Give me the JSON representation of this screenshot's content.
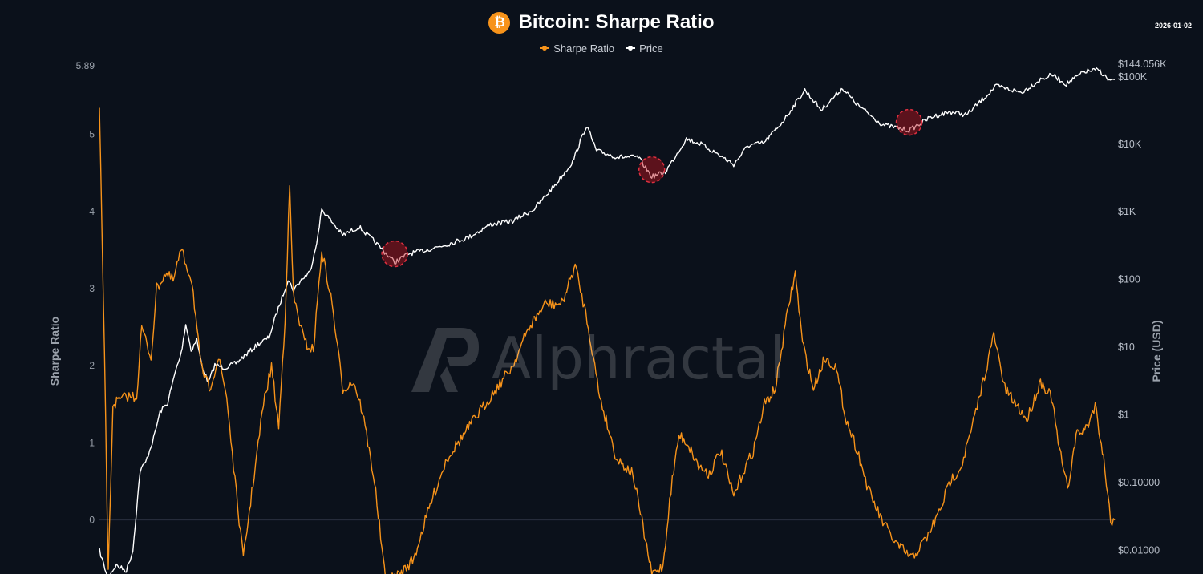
{
  "header": {
    "title": "Bitcoin: Sharpe Ratio",
    "logo_glyph": "₿",
    "date": "2026-01-02"
  },
  "legend": {
    "items": [
      {
        "label": "Sharpe Ratio",
        "color": "#f7931a"
      },
      {
        "label": "Price",
        "color": "#ffffff"
      }
    ]
  },
  "watermark": {
    "text": "Alphractal"
  },
  "chart_data": {
    "type": "line",
    "ylabel": "Sharpe Ratio",
    "y2label": "Price (USD)",
    "ylim": [
      -0.7,
      5.89
    ],
    "y2lim_log10": [
      -2.35,
      5.158
    ],
    "y_max_label": "5.89",
    "y_ticks": [
      0,
      1,
      2,
      3,
      4,
      5
    ],
    "y2_ticks": [
      {
        "label": "$144.056K",
        "value": 144056
      },
      {
        "label": "$100K",
        "value": 100000
      },
      {
        "label": "$10K",
        "value": 10000
      },
      {
        "label": "$1K",
        "value": 1000
      },
      {
        "label": "$100",
        "value": 100
      },
      {
        "label": "$10",
        "value": 10
      },
      {
        "label": "$1",
        "value": 1
      },
      {
        "label": "$0.10000",
        "value": 0.1
      },
      {
        "label": "$0.01000",
        "value": 0.01
      }
    ],
    "grid": false,
    "legend_position": "top-center",
    "x_start": "2010-07-18",
    "x_end": "2026-01-02",
    "series": [
      {
        "name": "Sharpe Ratio",
        "axis": "left",
        "color": "#f7931a",
        "points": [
          [
            "2010-07-18",
            5.3
          ],
          [
            "2010-08-15",
            2.2
          ],
          [
            "2010-09-05",
            -0.7
          ],
          [
            "2010-10-01",
            1.5
          ],
          [
            "2010-12-15",
            1.6
          ],
          [
            "2011-02-10",
            1.6
          ],
          [
            "2011-03-10",
            2.5
          ],
          [
            "2011-05-01",
            2.1
          ],
          [
            "2011-06-01",
            3.0
          ],
          [
            "2011-07-20",
            3.2
          ],
          [
            "2011-09-01",
            3.1
          ],
          [
            "2011-10-15",
            3.5
          ],
          [
            "2011-12-15",
            3.1
          ],
          [
            "2012-02-01",
            2.0
          ],
          [
            "2012-03-20",
            1.7
          ],
          [
            "2012-05-10",
            2.1
          ],
          [
            "2012-06-25",
            1.6
          ],
          [
            "2012-08-10",
            0.5
          ],
          [
            "2012-09-25",
            -0.5
          ],
          [
            "2012-11-25",
            0.6
          ],
          [
            "2013-01-15",
            1.5
          ],
          [
            "2013-03-01",
            2.0
          ],
          [
            "2013-04-10",
            1.2
          ],
          [
            "2013-05-15",
            2.6
          ],
          [
            "2013-06-10",
            4.3
          ],
          [
            "2013-07-01",
            2.9
          ],
          [
            "2013-09-01",
            2.3
          ],
          [
            "2013-10-20",
            2.2
          ],
          [
            "2013-12-05",
            3.5
          ],
          [
            "2014-02-01",
            2.8
          ],
          [
            "2014-04-01",
            1.7
          ],
          [
            "2014-06-01",
            1.8
          ],
          [
            "2014-07-20",
            1.4
          ],
          [
            "2014-09-25",
            0.5
          ],
          [
            "2014-11-25",
            -0.8
          ],
          [
            "2015-02-15",
            -0.7
          ],
          [
            "2015-05-01",
            -0.5
          ],
          [
            "2015-08-01",
            0.2
          ],
          [
            "2015-11-01",
            0.8
          ],
          [
            "2016-02-01",
            1.1
          ],
          [
            "2016-05-01",
            1.4
          ],
          [
            "2016-08-01",
            1.7
          ],
          [
            "2016-11-01",
            2.0
          ],
          [
            "2017-02-01",
            2.5
          ],
          [
            "2017-05-01",
            2.8
          ],
          [
            "2017-08-01",
            2.8
          ],
          [
            "2017-10-15",
            3.3
          ],
          [
            "2017-12-20",
            2.6
          ],
          [
            "2018-03-01",
            1.6
          ],
          [
            "2018-06-01",
            0.8
          ],
          [
            "2018-09-01",
            0.6
          ],
          [
            "2018-12-15",
            -0.7
          ],
          [
            "2019-02-15",
            -0.6
          ],
          [
            "2019-04-01",
            0.4
          ],
          [
            "2019-05-15",
            1.1
          ],
          [
            "2019-07-01",
            1.0
          ],
          [
            "2019-09-01",
            0.7
          ],
          [
            "2019-11-01",
            0.6
          ],
          [
            "2020-01-01",
            0.9
          ],
          [
            "2020-03-15",
            0.3
          ],
          [
            "2020-05-01",
            0.6
          ],
          [
            "2020-07-01",
            0.9
          ],
          [
            "2020-09-01",
            1.5
          ],
          [
            "2020-11-01",
            1.7
          ],
          [
            "2021-01-15",
            2.8
          ],
          [
            "2021-02-20",
            3.2
          ],
          [
            "2021-04-01",
            2.3
          ],
          [
            "2021-06-01",
            1.7
          ],
          [
            "2021-08-01",
            2.1
          ],
          [
            "2021-10-01",
            2.0
          ],
          [
            "2021-12-01",
            1.3
          ],
          [
            "2022-02-01",
            0.9
          ],
          [
            "2022-04-01",
            0.4
          ],
          [
            "2022-06-15",
            0.0
          ],
          [
            "2022-09-01",
            -0.3
          ],
          [
            "2022-12-01",
            -0.5
          ],
          [
            "2023-03-01",
            -0.2
          ],
          [
            "2023-05-01",
            0.1
          ],
          [
            "2023-07-01",
            0.5
          ],
          [
            "2023-09-01",
            0.7
          ],
          [
            "2023-11-01",
            1.2
          ],
          [
            "2024-01-01",
            1.8
          ],
          [
            "2024-03-01",
            2.4
          ],
          [
            "2024-05-01",
            1.7
          ],
          [
            "2024-07-01",
            1.5
          ],
          [
            "2024-09-01",
            1.3
          ],
          [
            "2024-11-15",
            1.8
          ],
          [
            "2025-01-15",
            1.6
          ],
          [
            "2025-03-01",
            0.9
          ],
          [
            "2025-04-15",
            0.4
          ],
          [
            "2025-06-01",
            1.1
          ],
          [
            "2025-08-01",
            1.2
          ],
          [
            "2025-09-15",
            1.5
          ],
          [
            "2025-11-01",
            0.8
          ],
          [
            "2025-12-10",
            0.0
          ],
          [
            "2026-01-02",
            0.0
          ]
        ]
      },
      {
        "name": "Price",
        "axis": "right",
        "color": "#ffffff",
        "points": [
          [
            "2010-07-18",
            0.01
          ],
          [
            "2010-09-01",
            0.004
          ],
          [
            "2010-10-20",
            0.006
          ],
          [
            "2010-12-15",
            0.005
          ],
          [
            "2011-01-20",
            0.01
          ],
          [
            "2011-03-01",
            0.15
          ],
          [
            "2011-04-01",
            0.2
          ],
          [
            "2011-05-15",
            0.45
          ],
          [
            "2011-06-20",
            1.1
          ],
          [
            "2011-08-01",
            1.5
          ],
          [
            "2011-09-15",
            4.5
          ],
          [
            "2011-10-15",
            8.0
          ],
          [
            "2011-11-10",
            22.0
          ],
          [
            "2011-12-10",
            9.0
          ],
          [
            "2012-01-10",
            13.0
          ],
          [
            "2012-02-10",
            5.0
          ],
          [
            "2012-03-15",
            3.0
          ],
          [
            "2012-04-20",
            5.5
          ],
          [
            "2012-06-15",
            5.0
          ],
          [
            "2012-08-15",
            5.8
          ],
          [
            "2012-10-15",
            8.0
          ],
          [
            "2012-12-15",
            11.0
          ],
          [
            "2013-02-15",
            14.0
          ],
          [
            "2013-04-01",
            33.0
          ],
          [
            "2013-06-01",
            100.0
          ],
          [
            "2013-07-01",
            70.0
          ],
          [
            "2013-08-15",
            100.0
          ],
          [
            "2013-10-01",
            130.0
          ],
          [
            "2013-11-15",
            450.0
          ],
          [
            "2013-12-05",
            1100.0
          ],
          [
            "2014-01-15",
            800.0
          ],
          [
            "2014-04-01",
            450.0
          ],
          [
            "2014-07-01",
            600.0
          ],
          [
            "2014-10-01",
            350.0
          ],
          [
            "2015-01-15",
            180.0
          ],
          [
            "2015-04-01",
            240.0
          ],
          [
            "2015-07-01",
            270.0
          ],
          [
            "2015-11-01",
            330.0
          ],
          [
            "2016-03-01",
            420.0
          ],
          [
            "2016-07-01",
            650.0
          ],
          [
            "2016-11-01",
            730.0
          ],
          [
            "2017-03-01",
            1100.0
          ],
          [
            "2017-07-01",
            2600.0
          ],
          [
            "2017-10-01",
            5500.0
          ],
          [
            "2017-12-17",
            19000.0
          ],
          [
            "2018-02-10",
            8000.0
          ],
          [
            "2018-06-01",
            6500.0
          ],
          [
            "2018-10-01",
            6400.0
          ],
          [
            "2018-12-15",
            3300.0
          ],
          [
            "2019-03-01",
            3900.0
          ],
          [
            "2019-06-25",
            12000.0
          ],
          [
            "2019-09-15",
            10000.0
          ],
          [
            "2019-12-15",
            7200.0
          ],
          [
            "2020-03-15",
            5000.0
          ],
          [
            "2020-06-01",
            9500.0
          ],
          [
            "2020-09-01",
            10500.0
          ],
          [
            "2020-12-15",
            22000.0
          ],
          [
            "2021-04-14",
            63000.0
          ],
          [
            "2021-07-15",
            32000.0
          ],
          [
            "2021-11-10",
            67000.0
          ],
          [
            "2022-02-01",
            38000.0
          ],
          [
            "2022-06-18",
            19500.0
          ],
          [
            "2022-11-15",
            16000.0
          ],
          [
            "2023-03-15",
            25000.0
          ],
          [
            "2023-07-01",
            30000.0
          ],
          [
            "2023-10-01",
            27000.0
          ],
          [
            "2024-03-14",
            72000.0
          ],
          [
            "2024-08-01",
            58000.0
          ],
          [
            "2024-11-15",
            90000.0
          ],
          [
            "2025-01-20",
            106000.0
          ],
          [
            "2025-04-08",
            77000.0
          ],
          [
            "2025-07-15",
            118000.0
          ],
          [
            "2025-10-06",
            125000.0
          ],
          [
            "2025-12-01",
            87000.0
          ],
          [
            "2026-01-02",
            90000.0
          ]
        ]
      }
    ],
    "annotations": [
      {
        "type": "circle",
        "date": "2015-01-15",
        "value": 240,
        "axis": "right"
      },
      {
        "type": "circle",
        "date": "2018-12-15",
        "value": 4200,
        "axis": "right"
      },
      {
        "type": "circle",
        "date": "2022-11-15",
        "value": 21000,
        "axis": "right"
      }
    ]
  }
}
